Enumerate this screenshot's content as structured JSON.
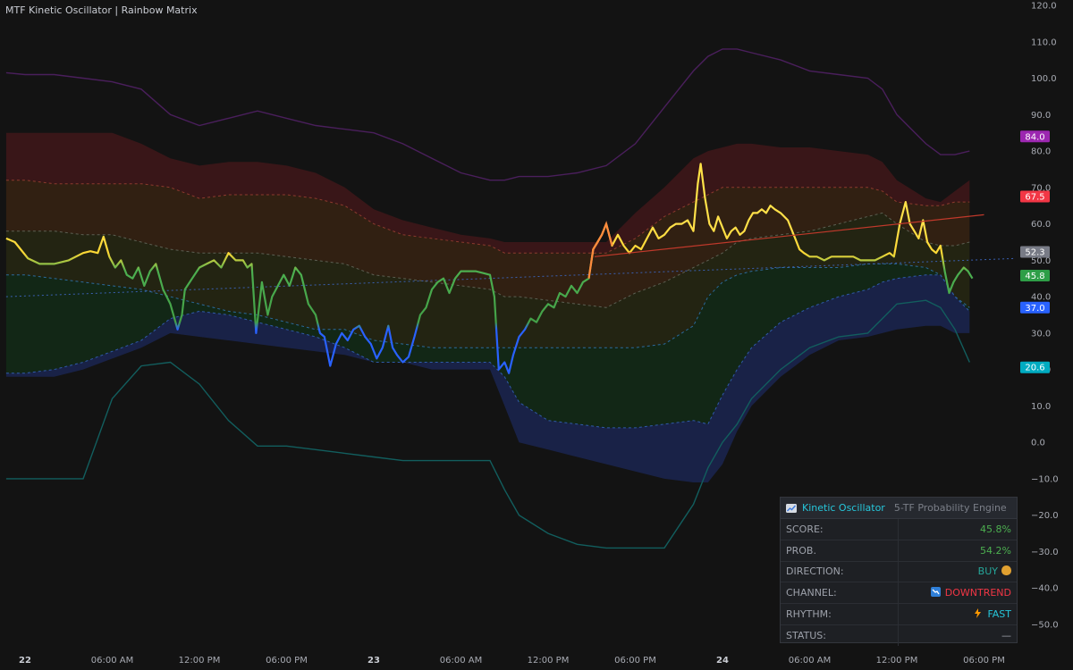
{
  "title": "MTF Kinetic Oscillator | Rainbow Matrix",
  "colors": {
    "background": "#131313",
    "purple": "#7b1fa2",
    "red": "#e53935",
    "grey": "#8a8d94",
    "green": "#4caf50",
    "blue": "#2962ff",
    "teal": "#00838f",
    "yellow": "#ffd54f",
    "orange": "#ff7043"
  },
  "chart_data": {
    "type": "line",
    "ylim": [
      -55,
      120
    ],
    "y_ticks": [
      "120.0",
      "110.0",
      "100.0",
      "90.0",
      "80.0",
      "70.0",
      "60.0",
      "50.0",
      "40.0",
      "30.0",
      "20.0",
      "10.0",
      "0.0",
      "−10.0",
      "−20.0",
      "−30.0",
      "−40.0",
      "−50.0"
    ],
    "y_tick_values": [
      120,
      110,
      100,
      90,
      80,
      70,
      60,
      50,
      40,
      30,
      20,
      10,
      0,
      -10,
      -20,
      -30,
      -40,
      -50
    ],
    "x_labels": [
      {
        "t": 0,
        "label": "22",
        "major": true
      },
      {
        "t": 6,
        "label": "06:00 AM",
        "major": false
      },
      {
        "t": 12,
        "label": "12:00 PM",
        "major": false
      },
      {
        "t": 18,
        "label": "06:00 PM",
        "major": false
      },
      {
        "t": 24,
        "label": "23",
        "major": true
      },
      {
        "t": 30,
        "label": "06:00 AM",
        "major": false
      },
      {
        "t": 36,
        "label": "12:00 PM",
        "major": false
      },
      {
        "t": 42,
        "label": "06:00 PM",
        "major": false
      },
      {
        "t": 48,
        "label": "24",
        "major": true
      },
      {
        "t": 54,
        "label": "06:00 AM",
        "major": false
      },
      {
        "t": 60,
        "label": "12:00 PM",
        "major": false
      },
      {
        "t": 66,
        "label": "06:00 PM",
        "major": false
      }
    ],
    "x_range_hours": [
      -1.3,
      70.5
    ],
    "price_labels": [
      {
        "value": 84.0,
        "label": "84.0",
        "color": "#9c27b0"
      },
      {
        "value": 67.5,
        "label": "67.5",
        "color": "#f23645"
      },
      {
        "value": 52.3,
        "label": "52.3",
        "color": "#787b86"
      },
      {
        "value": 45.8,
        "label": "45.8",
        "color": "#2e9e47"
      },
      {
        "value": 37.0,
        "label": "37.0",
        "color": "#2962ff"
      },
      {
        "value": 20.6,
        "label": "20.6",
        "color": "#00acc1"
      }
    ],
    "series": [
      {
        "role": "oscillator",
        "points": [
          [
            -1.3,
            56
          ],
          [
            -0.7,
            55
          ],
          [
            0.2,
            50.5
          ],
          [
            1.0,
            49
          ],
          [
            2.0,
            49
          ],
          [
            3.0,
            50
          ],
          [
            4.0,
            52
          ],
          [
            4.5,
            52.5
          ],
          [
            5.0,
            52
          ],
          [
            5.4,
            56.5
          ],
          [
            5.8,
            51
          ],
          [
            6.2,
            48
          ],
          [
            6.6,
            50
          ],
          [
            7.0,
            46
          ],
          [
            7.4,
            45
          ],
          [
            7.8,
            48
          ],
          [
            8.2,
            43
          ],
          [
            8.6,
            47
          ],
          [
            9.0,
            49
          ],
          [
            9.5,
            42
          ],
          [
            10.0,
            38
          ],
          [
            10.5,
            31
          ],
          [
            10.8,
            35
          ],
          [
            11.0,
            42
          ],
          [
            11.5,
            45
          ],
          [
            12.0,
            48
          ],
          [
            12.5,
            49
          ],
          [
            13.0,
            50
          ],
          [
            13.5,
            48
          ],
          [
            14.0,
            52
          ],
          [
            14.5,
            50
          ],
          [
            15.0,
            50
          ],
          [
            15.3,
            48
          ],
          [
            15.6,
            49
          ],
          [
            15.9,
            30
          ],
          [
            16.3,
            44
          ],
          [
            16.7,
            35
          ],
          [
            17.0,
            40
          ],
          [
            17.4,
            43
          ],
          [
            17.8,
            46
          ],
          [
            18.2,
            43
          ],
          [
            18.6,
            48
          ],
          [
            19.0,
            46
          ],
          [
            19.5,
            38
          ],
          [
            20.0,
            35
          ],
          [
            20.3,
            30
          ],
          [
            20.6,
            29
          ],
          [
            21.0,
            21
          ],
          [
            21.4,
            27
          ],
          [
            21.8,
            30
          ],
          [
            22.2,
            28
          ],
          [
            22.6,
            31
          ],
          [
            23.0,
            32
          ],
          [
            23.4,
            29
          ],
          [
            23.8,
            27
          ],
          [
            24.2,
            23
          ],
          [
            24.6,
            26
          ],
          [
            25.0,
            32
          ],
          [
            25.3,
            26
          ],
          [
            25.6,
            24
          ],
          [
            26.0,
            22
          ],
          [
            26.4,
            23.5
          ],
          [
            26.8,
            29
          ],
          [
            27.2,
            35
          ],
          [
            27.6,
            37
          ],
          [
            28.0,
            42
          ],
          [
            28.4,
            44
          ],
          [
            28.8,
            45
          ],
          [
            29.2,
            41
          ],
          [
            29.6,
            45
          ],
          [
            30.0,
            47
          ],
          [
            30.5,
            47
          ],
          [
            31.0,
            47
          ],
          [
            31.5,
            46.5
          ],
          [
            32.0,
            46
          ],
          [
            32.3,
            40
          ],
          [
            32.6,
            20
          ],
          [
            33.0,
            22
          ],
          [
            33.3,
            19
          ],
          [
            33.6,
            24
          ],
          [
            34.0,
            29
          ],
          [
            34.4,
            31
          ],
          [
            34.8,
            34
          ],
          [
            35.2,
            33
          ],
          [
            35.6,
            36
          ],
          [
            36.0,
            38
          ],
          [
            36.4,
            37
          ],
          [
            36.8,
            41
          ],
          [
            37.2,
            40
          ],
          [
            37.6,
            43
          ],
          [
            38.0,
            41
          ],
          [
            38.4,
            44
          ],
          [
            38.8,
            45
          ],
          [
            39.1,
            53
          ],
          [
            39.4,
            55
          ],
          [
            39.7,
            57
          ],
          [
            40.0,
            60
          ],
          [
            40.4,
            54
          ],
          [
            40.8,
            57
          ],
          [
            41.2,
            54
          ],
          [
            41.6,
            52
          ],
          [
            42.0,
            54
          ],
          [
            42.4,
            53
          ],
          [
            42.8,
            56
          ],
          [
            43.2,
            59
          ],
          [
            43.6,
            56
          ],
          [
            44.0,
            57
          ],
          [
            44.4,
            59
          ],
          [
            44.8,
            60
          ],
          [
            45.2,
            60
          ],
          [
            45.6,
            61
          ],
          [
            46.0,
            58
          ],
          [
            46.3,
            71
          ],
          [
            46.5,
            76.5
          ],
          [
            46.8,
            67
          ],
          [
            47.1,
            60
          ],
          [
            47.4,
            58
          ],
          [
            47.7,
            62
          ],
          [
            48.0,
            59
          ],
          [
            48.3,
            56
          ],
          [
            48.6,
            58
          ],
          [
            48.9,
            59
          ],
          [
            49.2,
            57
          ],
          [
            49.5,
            58
          ],
          [
            49.8,
            61
          ],
          [
            50.1,
            63
          ],
          [
            50.4,
            63
          ],
          [
            50.7,
            64
          ],
          [
            51.0,
            63
          ],
          [
            51.3,
            65
          ],
          [
            51.6,
            64
          ],
          [
            52.0,
            63
          ],
          [
            52.5,
            61
          ],
          [
            53.0,
            56
          ],
          [
            53.3,
            53
          ],
          [
            53.6,
            52
          ],
          [
            54.0,
            51
          ],
          [
            54.5,
            51
          ],
          [
            55.0,
            50
          ],
          [
            55.5,
            51
          ],
          [
            56.0,
            51
          ],
          [
            56.5,
            51
          ],
          [
            57.0,
            51
          ],
          [
            57.5,
            50
          ],
          [
            58.0,
            50
          ],
          [
            58.5,
            50
          ],
          [
            59.0,
            51
          ],
          [
            59.5,
            52
          ],
          [
            59.8,
            51
          ],
          [
            60.2,
            60
          ],
          [
            60.6,
            66
          ],
          [
            60.9,
            60
          ],
          [
            61.2,
            58
          ],
          [
            61.5,
            56
          ],
          [
            61.8,
            61
          ],
          [
            62.1,
            55
          ],
          [
            62.4,
            53
          ],
          [
            62.7,
            52
          ],
          [
            63.0,
            54
          ],
          [
            63.3,
            47
          ],
          [
            63.6,
            41
          ],
          [
            63.9,
            44
          ],
          [
            64.2,
            46
          ],
          [
            64.6,
            48
          ],
          [
            64.9,
            47
          ],
          [
            65.2,
            45
          ]
        ]
      },
      {
        "role": "regression",
        "points": [
          [
            39.2,
            51
          ],
          [
            66.0,
            62.5
          ]
        ]
      }
    ],
    "bands": {
      "hours": [
        -1.3,
        0,
        2,
        4,
        6,
        8,
        10,
        12,
        14,
        16,
        18,
        20,
        22,
        24,
        26,
        28,
        30,
        32,
        33,
        34,
        36,
        38,
        40,
        42,
        44,
        46,
        47,
        48,
        49,
        50,
        52,
        54,
        56,
        58,
        59,
        60,
        62,
        63,
        64,
        65
      ],
      "outer_top": [
        101.5,
        101,
        101,
        100,
        99,
        97,
        90,
        87,
        89,
        91,
        89,
        87,
        86,
        85,
        82,
        78,
        74,
        72,
        72,
        73,
        73,
        74,
        76,
        82,
        92,
        102,
        106,
        108,
        108,
        107,
        105,
        102,
        101,
        100,
        97,
        90,
        82,
        79,
        79,
        80
      ],
      "upper_band_top": [
        85,
        85,
        85,
        85,
        85,
        82,
        78,
        76,
        77,
        77,
        76,
        74,
        70,
        64,
        61,
        59,
        57,
        56,
        55,
        55,
        55,
        55,
        55,
        63,
        70,
        78,
        80,
        81,
        82,
        82,
        81,
        81,
        80,
        79,
        77,
        72,
        67,
        66,
        69,
        72
      ],
      "red_mid": [
        72,
        72,
        71,
        71,
        71,
        71,
        70,
        67,
        68,
        68,
        68,
        67,
        65,
        60,
        57,
        56,
        55,
        54,
        52,
        52,
        52,
        52,
        52,
        56,
        62,
        66,
        68,
        70,
        70,
        70,
        70,
        70,
        70,
        70,
        69,
        66,
        65,
        65,
        66,
        66
      ],
      "mid": [
        58,
        58,
        58,
        57,
        57,
        55,
        53,
        52,
        52,
        52,
        51,
        50,
        49,
        46,
        45,
        44,
        43,
        42,
        40,
        40,
        39,
        38,
        37,
        41,
        44,
        48,
        50,
        52,
        55,
        56,
        57,
        58,
        60,
        62,
        63,
        60,
        55,
        54,
        54,
        55
      ],
      "low_mid": [
        46,
        46,
        45,
        44,
        43,
        42,
        40,
        38,
        36,
        35,
        33,
        31,
        31,
        28,
        27,
        26,
        26,
        26,
        26,
        26,
        26,
        26,
        26,
        26,
        27,
        32,
        40,
        44,
        46,
        47,
        48,
        48,
        48,
        49,
        49,
        49,
        48,
        46,
        40,
        37
      ],
      "blue_line": [
        19,
        19,
        20,
        22,
        25,
        28,
        34,
        36,
        35,
        33,
        31,
        29,
        26,
        22,
        22,
        22,
        22,
        22,
        18,
        11,
        6,
        5,
        4,
        4,
        5,
        6,
        5,
        13,
        20,
        26,
        33,
        37,
        40,
        42,
        44,
        45,
        46,
        46,
        40,
        36
      ],
      "blue_low": [
        18,
        18,
        18,
        20,
        23,
        26,
        30,
        29,
        28,
        27,
        26,
        25,
        24,
        22,
        22,
        20,
        20,
        20,
        10,
        0,
        -2,
        -4,
        -6,
        -8,
        -10,
        -11,
        -11,
        -6,
        3,
        10,
        18,
        24,
        28,
        29,
        30,
        31,
        32,
        32,
        30,
        30
      ],
      "outer_bottom": [
        -10,
        -10,
        -10,
        -10,
        12,
        21,
        22,
        16,
        6,
        -1,
        -1,
        -2,
        -3,
        -4,
        -5,
        -5,
        -5,
        -5,
        -13,
        -20,
        -25,
        -28,
        -29,
        -29,
        -29,
        -17,
        -7,
        0,
        5,
        12,
        20,
        26,
        29,
        30,
        34,
        38,
        39,
        37,
        31,
        22
      ]
    }
  },
  "panel": {
    "title": "Kinetic Oscillator",
    "subtitle": "5-TF Probability Engine",
    "rows": [
      {
        "label": "SCORE:",
        "value": "45.8%",
        "color": "#4caf50",
        "icon": ""
      },
      {
        "label": "PROB.",
        "value": "54.2%",
        "color": "#4caf50",
        "icon": ""
      },
      {
        "label": "DIRECTION:",
        "value": "BUY",
        "color": "#26a69a",
        "icon": "money-bag-icon"
      },
      {
        "label": "CHANNEL:",
        "value": "DOWNTREND",
        "color": "#f23645",
        "icon": "chart-down-icon"
      },
      {
        "label": "RHYTHM:",
        "value": "FAST",
        "color": "#26c6da",
        "icon": "lightning-icon"
      },
      {
        "label": "STATUS:",
        "value": "—",
        "color": "#9da1aa",
        "icon": ""
      }
    ]
  }
}
